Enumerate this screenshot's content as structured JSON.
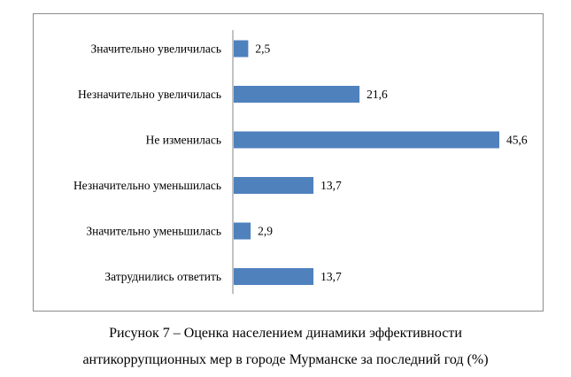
{
  "figure": {
    "caption_line1": "Рисунок 7 – Оценка населением динамики эффективности",
    "caption_line2": "антикоррупционных мер в городе Мурманске за последний год (%)"
  },
  "chart_data": {
    "type": "bar",
    "orientation": "horizontal",
    "categories": [
      "Значительно увеличилась",
      "Незначительно увеличилась",
      "Не изменилась",
      "Незначительно уменьшилась",
      "Значительно уменьшилась",
      "Затруднились ответить"
    ],
    "values": [
      2.5,
      21.6,
      45.6,
      13.7,
      2.9,
      13.7
    ],
    "value_labels": [
      "2,5",
      "21,6",
      "45,6",
      "13,7",
      "2,9",
      "13,7"
    ],
    "title": "",
    "xlabel": "",
    "ylabel": "",
    "xlim": [
      0,
      45.6
    ],
    "grid": false,
    "legend": "none",
    "bar_color": "#4f81bd"
  }
}
